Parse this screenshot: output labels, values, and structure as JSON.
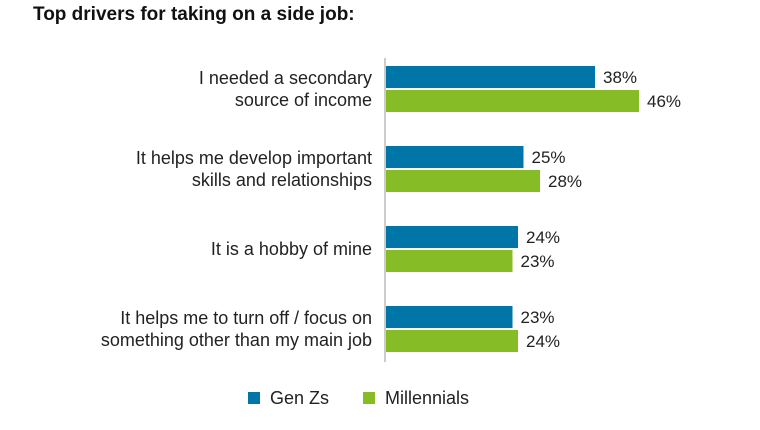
{
  "chart_data": {
    "type": "bar",
    "orientation": "horizontal",
    "title": "Top drivers for taking on a side job:",
    "categories": [
      [
        "I needed a secondary",
        "source of income"
      ],
      [
        "It helps me develop important",
        "skills and relationships"
      ],
      [
        "It is a hobby of mine"
      ],
      [
        "It helps me to turn off / focus on",
        "something other than my main job"
      ]
    ],
    "series": [
      {
        "name": "Gen Zs",
        "color": "#0076A8",
        "values": [
          38,
          25,
          24,
          23
        ]
      },
      {
        "name": "Millennials",
        "color": "#86BC25",
        "values": [
          46,
          28,
          23,
          24
        ]
      }
    ],
    "value_suffix": "%",
    "xlim": [
      0,
      100
    ],
    "grid": false,
    "legend_position": "bottom-center"
  }
}
